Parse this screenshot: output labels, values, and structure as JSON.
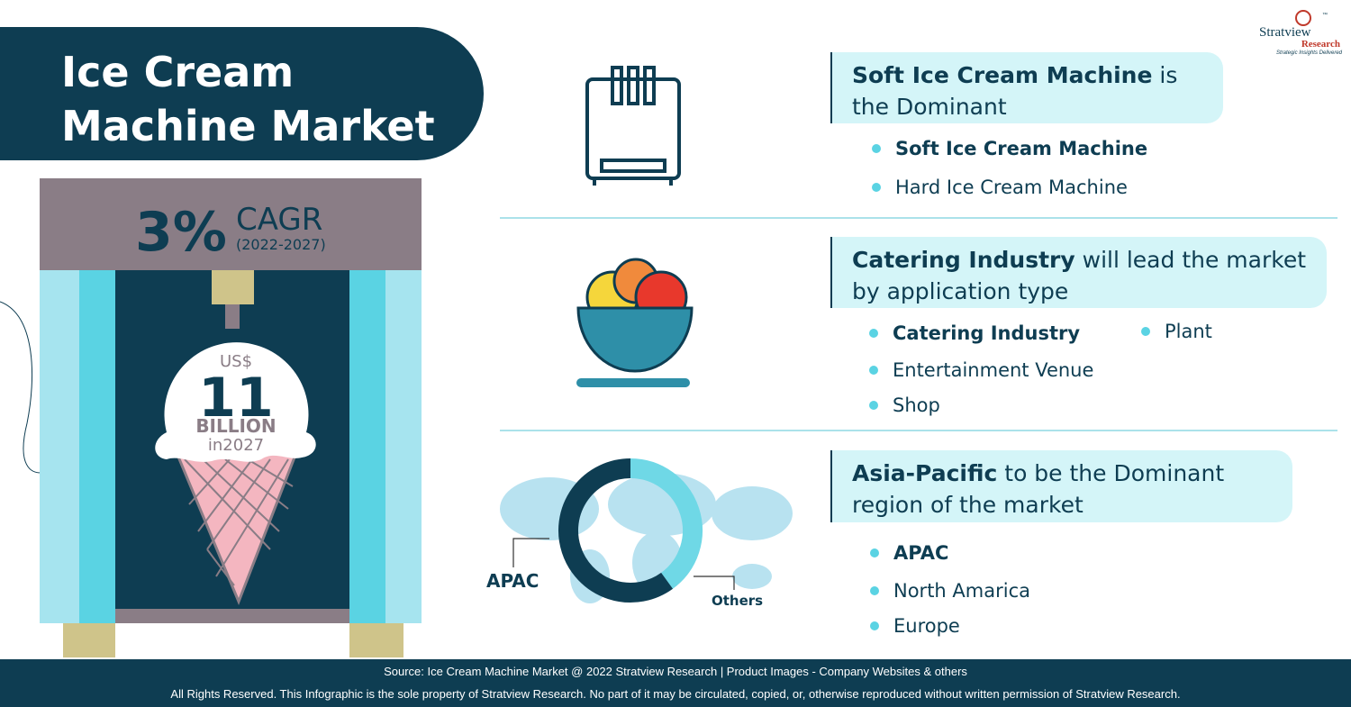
{
  "header": {
    "title_lines": [
      "Ice Cream",
      "Machine Market"
    ]
  },
  "logo": {
    "name": "Stratview",
    "tm": "™",
    "sub": "Research",
    "tagline": "Strategic Insights Delivered"
  },
  "cagr": {
    "value": "3%",
    "label": "CAGR",
    "period": "(2022-2027)"
  },
  "market_size": {
    "currency": "US$",
    "value": "11",
    "unit": "BILLION",
    "year": "in2027"
  },
  "sections": [
    {
      "heading_bold": "Soft Ice Cream Machine",
      "heading_rest": "is the Dominant",
      "items": [
        {
          "text": "Soft Ice Cream Machine",
          "bold": true
        },
        {
          "text": "Hard Ice Cream Machine",
          "bold": false
        }
      ]
    },
    {
      "heading_bold": "Catering Industry",
      "heading_rest": "will lead the market by application type",
      "items": [
        {
          "text": "Catering Industry",
          "bold": true
        },
        {
          "text": "Plant",
          "bold": false
        },
        {
          "text": "Entertainment Venue",
          "bold": false
        },
        {
          "text": "Shop",
          "bold": false
        }
      ]
    },
    {
      "heading_bold": "Asia-Pacific",
      "heading_rest": "to be the Dominant region of the market",
      "items": [
        {
          "text": "APAC",
          "bold": true
        },
        {
          "text": "North Amarica",
          "bold": false
        },
        {
          "text": "Europe",
          "bold": false
        }
      ]
    }
  ],
  "donut": {
    "labels": [
      "APAC",
      "Others"
    ],
    "values": [
      60,
      40
    ]
  },
  "footer": {
    "source": "Source: Ice Cream Machine Market @ 2022 Stratview Research | Product Images  - Company Websites & others",
    "rights": "All Rights Reserved. This Infographic is the sole property of Stratview Research. No part of it may be circulated, copied, or, otherwise reproduced without written permission of Stratview Research."
  }
}
